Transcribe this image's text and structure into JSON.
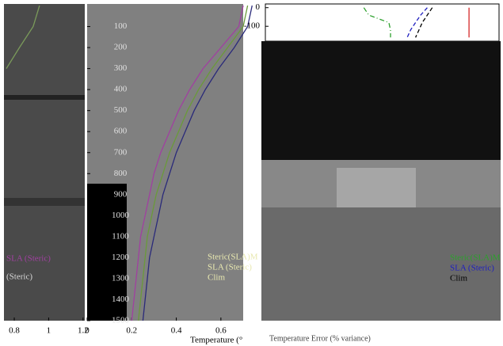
{
  "chart_data": [
    {
      "type": "line",
      "x_label": "Temperature (°",
      "y": [
        0,
        100,
        200,
        300,
        400,
        500,
        600,
        700,
        800,
        900,
        1000,
        1100,
        1200,
        1300,
        1400,
        1500
      ],
      "series": [
        {
          "name": "Steric(SLA)M",
          "color": "#a040a0",
          "values": [
            0.7,
            0.68,
            0.6,
            0.52,
            0.46,
            0.41,
            0.37,
            0.33,
            0.3,
            0.28,
            0.26,
            0.24,
            0.23,
            0.22,
            0.21,
            0.2
          ]
        },
        {
          "name": "SLA (Steric)",
          "color": "#6a9a3a",
          "values": [
            0.72,
            0.7,
            0.63,
            0.56,
            0.5,
            0.45,
            0.41,
            0.37,
            0.34,
            0.31,
            0.29,
            0.27,
            0.26,
            0.25,
            0.24,
            0.23
          ]
        },
        {
          "name": "Clim",
          "color": "#2a2a7a",
          "values": [
            0.74,
            0.72,
            0.66,
            0.59,
            0.53,
            0.48,
            0.44,
            0.4,
            0.37,
            0.34,
            0.32,
            0.3,
            0.28,
            0.27,
            0.26,
            0.25
          ]
        }
      ],
      "xlim": [
        0,
        0.7
      ],
      "xticks": [
        0.0,
        0.2,
        0.4,
        0.6
      ],
      "ylim": [
        0,
        1500
      ],
      "y_inverted": true,
      "yticks": [
        100,
        200,
        300,
        400,
        500,
        600,
        700,
        800,
        900,
        1000,
        1100,
        1200,
        1300,
        1400,
        1500
      ]
    },
    {
      "type": "line",
      "x_label": "Temperature Error (% variance)",
      "y": [
        0,
        -40,
        -80,
        -120,
        -160
      ],
      "series": [
        {
          "name": "Steric(SLA)M",
          "color": "#2ca02c",
          "style": "dashdot",
          "values": [
            0.59,
            0.62,
            0.74,
            0.75,
            0.75
          ]
        },
        {
          "name": "SLA (Steric)",
          "color": "#1f1fbf",
          "style": "dash",
          "values": [
            0.97,
            0.93,
            0.9,
            0.87,
            0.85
          ]
        },
        {
          "name": "Clim",
          "color": "#000000",
          "style": "dash",
          "values": [
            1.0,
            0.97,
            0.94,
            0.92,
            0.9
          ]
        },
        {
          "color": "#d62728",
          "style": "solid",
          "values": [
            1.22,
            1.22,
            1.22,
            1.22,
            1.22
          ]
        }
      ],
      "xlim": [
        0,
        1.4
      ],
      "ylim": [
        -180,
        20
      ],
      "y_inverted": false,
      "yticks": [
        0,
        -100
      ]
    },
    {
      "type": "line",
      "annotations": [
        "SLA (Steric)",
        "(Steric)"
      ],
      "y": [
        0,
        100,
        200,
        300
      ],
      "series": [
        {
          "color": "#7a9a5a",
          "values": [
            0.947,
            0.91,
            0.83,
            0.754
          ]
        }
      ],
      "xlim": [
        0.74,
        1.21
      ],
      "xticks": [
        0.8,
        1.0,
        1.2
      ],
      "ylim": [
        0,
        1500
      ],
      "y_inverted": true
    }
  ]
}
